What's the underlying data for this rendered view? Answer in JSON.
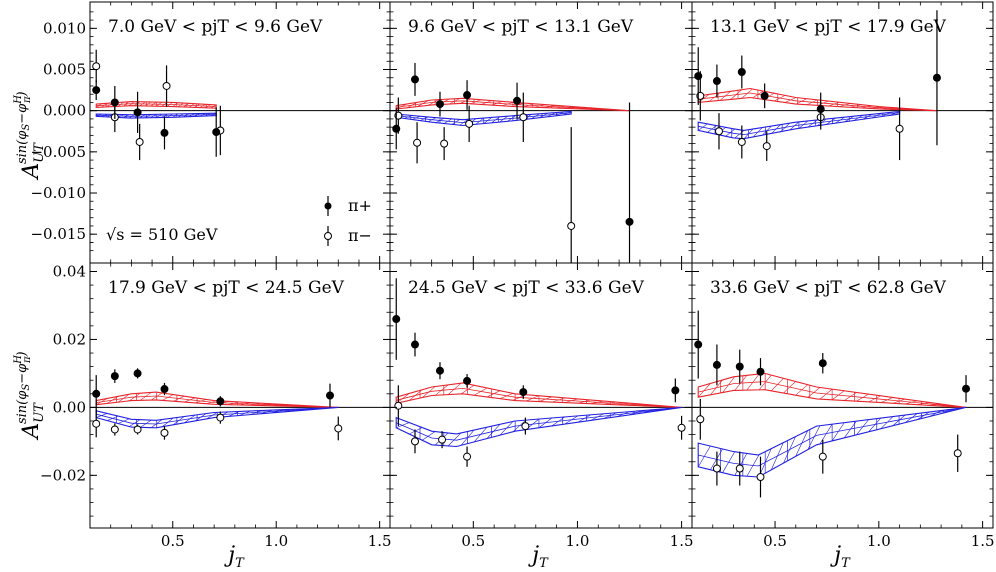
{
  "chart_data": {
    "type": "scatter",
    "figure_xlabel": "j_T",
    "ylabel_rows": [
      "A_UT^sin(φS−φπH)",
      "A_UT^sin(φS−φπH)"
    ],
    "energy_label": "√s = 510 GeV",
    "legend": [
      {
        "name": "π+",
        "marker": "filled-circle"
      },
      {
        "name": "π−",
        "marker": "open-circle"
      }
    ],
    "colors": {
      "pi_plus_band": "#e8242a",
      "pi_minus_band": "#2020e0",
      "points": "#000000",
      "zero_line": "#000000"
    },
    "xlim": [
      0.1,
      1.55
    ],
    "xticks": [
      0.5,
      1.0,
      1.5
    ],
    "xtick_labels": [
      "0.5",
      "1.0",
      "1.5"
    ],
    "rows": [
      {
        "ylim": [
          -0.0185,
          0.0132
        ],
        "yticks": [
          -0.015,
          -0.01,
          -0.005,
          0.0,
          0.005,
          0.01
        ],
        "ytick_labels": [
          "−0.015",
          "−0.010",
          "−0.005",
          "0.000",
          "0.005",
          "0.010"
        ]
      },
      {
        "ylim": [
          -0.0355,
          0.0425
        ],
        "yticks": [
          -0.02,
          0.0,
          0.02,
          0.04
        ],
        "ytick_labels": [
          "−0.02",
          "0.00",
          "0.02",
          "0.04"
        ]
      }
    ],
    "panels": [
      {
        "title": "7.0 GeV < pjT < 9.6 GeV",
        "row": 0,
        "col": 0,
        "pi_plus": [
          [
            0.13,
            0.0025,
            0.0012
          ],
          [
            0.22,
            0.001,
            0.002
          ],
          [
            0.33,
            -0.0002,
            0.0025
          ],
          [
            0.46,
            -0.0027,
            0.002
          ],
          [
            0.71,
            -0.0026,
            0.003
          ]
        ],
        "pi_minus": [
          [
            0.13,
            0.0054,
            0.002
          ],
          [
            0.22,
            -0.0008,
            0.0018
          ],
          [
            0.34,
            -0.0038,
            0.0022
          ],
          [
            0.47,
            0.003,
            0.0025
          ],
          [
            0.73,
            -0.0024,
            0.003
          ]
        ],
        "band_plus": [
          [
            0.13,
            0.0004,
            0.0008
          ],
          [
            0.3,
            0.0006,
            0.0011
          ],
          [
            0.5,
            0.0005,
            0.001
          ],
          [
            0.71,
            0.0003,
            0.0007
          ]
        ],
        "band_minus": [
          [
            0.13,
            -0.0007,
            -0.0004
          ],
          [
            0.3,
            -0.0009,
            -0.0005
          ],
          [
            0.5,
            -0.0008,
            -0.0004
          ],
          [
            0.71,
            -0.0006,
            -0.0003
          ]
        ]
      },
      {
        "title": "9.6 GeV < pjT < 13.1 GeV",
        "row": 0,
        "col": 1,
        "pi_plus": [
          [
            0.13,
            -0.0022,
            0.0025
          ],
          [
            0.22,
            0.0038,
            0.002
          ],
          [
            0.34,
            0.0008,
            0.0015
          ],
          [
            0.47,
            0.0019,
            0.0018
          ],
          [
            0.71,
            0.0012,
            0.0022
          ],
          [
            1.25,
            -0.0135,
            0.0145
          ]
        ],
        "pi_minus": [
          [
            0.14,
            -0.0006,
            0.0022
          ],
          [
            0.23,
            -0.0039,
            0.0025
          ],
          [
            0.36,
            -0.004,
            0.002
          ],
          [
            0.48,
            -0.0016,
            0.0022
          ],
          [
            0.74,
            -0.0008,
            0.003
          ],
          [
            0.97,
            -0.014,
            0.012
          ]
        ],
        "band_plus": [
          [
            0.13,
            0.0002,
            0.0006
          ],
          [
            0.3,
            0.0007,
            0.0013
          ],
          [
            0.45,
            0.0009,
            0.0015
          ],
          [
            0.7,
            0.0005,
            0.001
          ],
          [
            1.25,
            0.0,
            0.0
          ]
        ],
        "band_minus": [
          [
            0.13,
            -0.0008,
            -0.0004
          ],
          [
            0.3,
            -0.0014,
            -0.0008
          ],
          [
            0.45,
            -0.0018,
            -0.0011
          ],
          [
            0.7,
            -0.0012,
            -0.0006
          ],
          [
            0.97,
            -0.0004,
            -0.0001
          ]
        ]
      },
      {
        "title": "13.1 GeV < pjT < 17.9 GeV",
        "row": 0,
        "col": 2,
        "pi_plus": [
          [
            0.13,
            0.0042,
            0.0035
          ],
          [
            0.22,
            0.0036,
            0.002
          ],
          [
            0.34,
            0.0047,
            0.002
          ],
          [
            0.45,
            0.0018,
            0.0015
          ],
          [
            0.72,
            0.0002,
            0.002
          ],
          [
            1.28,
            0.004,
            0.0082
          ]
        ],
        "pi_minus": [
          [
            0.14,
            0.0018,
            0.003
          ],
          [
            0.23,
            -0.0025,
            0.0022
          ],
          [
            0.34,
            -0.0038,
            0.002
          ],
          [
            0.46,
            -0.0043,
            0.0018
          ],
          [
            0.72,
            -0.0008,
            0.0015
          ],
          [
            1.1,
            -0.0022,
            0.0038
          ]
        ],
        "band_plus": [
          [
            0.13,
            0.001,
            0.0018
          ],
          [
            0.3,
            0.0014,
            0.0024
          ],
          [
            0.38,
            0.0016,
            0.0027
          ],
          [
            0.6,
            0.0008,
            0.0016
          ],
          [
            1.0,
            0.0002,
            0.0005
          ],
          [
            1.28,
            0.0,
            0.0
          ]
        ],
        "band_minus": [
          [
            0.13,
            -0.0024,
            -0.0014
          ],
          [
            0.3,
            -0.0033,
            -0.0022
          ],
          [
            0.35,
            -0.0034,
            -0.0024
          ],
          [
            0.6,
            -0.0022,
            -0.0014
          ],
          [
            1.1,
            -0.0004,
            -0.0001
          ]
        ]
      },
      {
        "title": "17.9 GeV < pjT < 24.5 GeV",
        "row": 1,
        "col": 0,
        "pi_plus": [
          [
            0.13,
            0.004,
            0.0055
          ],
          [
            0.22,
            0.0092,
            0.002
          ],
          [
            0.33,
            0.01,
            0.0015
          ],
          [
            0.46,
            0.0054,
            0.0018
          ],
          [
            0.73,
            0.0018,
            0.0015
          ],
          [
            1.26,
            0.0035,
            0.0035
          ]
        ],
        "pi_minus": [
          [
            0.13,
            -0.0048,
            0.004
          ],
          [
            0.22,
            -0.0065,
            0.0018
          ],
          [
            0.33,
            -0.0065,
            0.0015
          ],
          [
            0.46,
            -0.0075,
            0.002
          ],
          [
            0.73,
            -0.003,
            0.0018
          ],
          [
            1.3,
            -0.0062,
            0.0035
          ]
        ],
        "band_plus": [
          [
            0.13,
            0.0008,
            0.002
          ],
          [
            0.3,
            0.002,
            0.004
          ],
          [
            0.42,
            0.0022,
            0.0045
          ],
          [
            0.7,
            0.0009,
            0.002
          ],
          [
            1.3,
            0.0,
            0.0
          ]
        ],
        "band_minus": [
          [
            0.13,
            -0.003,
            -0.001
          ],
          [
            0.3,
            -0.0058,
            -0.0035
          ],
          [
            0.42,
            -0.006,
            -0.0038
          ],
          [
            0.7,
            -0.003,
            -0.0015
          ],
          [
            1.3,
            0.0,
            0.0
          ]
        ]
      },
      {
        "title": "24.5 GeV < pjT < 33.6 GeV",
        "row": 1,
        "col": 1,
        "pi_plus": [
          [
            0.13,
            0.026,
            0.012
          ],
          [
            0.22,
            0.0185,
            0.0035
          ],
          [
            0.34,
            0.0108,
            0.0025
          ],
          [
            0.47,
            0.0078,
            0.002
          ],
          [
            0.74,
            0.0045,
            0.002
          ],
          [
            1.47,
            0.005,
            0.0035
          ]
        ],
        "pi_minus": [
          [
            0.14,
            0.0005,
            0.006
          ],
          [
            0.22,
            -0.01,
            0.0035
          ],
          [
            0.35,
            -0.0095,
            0.0025
          ],
          [
            0.47,
            -0.0145,
            0.003
          ],
          [
            0.75,
            -0.0055,
            0.0025
          ],
          [
            1.5,
            -0.006,
            0.0035
          ]
        ],
        "band_plus": [
          [
            0.13,
            0.0012,
            0.003
          ],
          [
            0.3,
            0.0035,
            0.006
          ],
          [
            0.45,
            0.004,
            0.0072
          ],
          [
            0.7,
            0.002,
            0.004
          ],
          [
            1.5,
            0.0,
            0.0
          ]
        ],
        "band_minus": [
          [
            0.13,
            -0.006,
            -0.003
          ],
          [
            0.3,
            -0.011,
            -0.007
          ],
          [
            0.42,
            -0.0115,
            -0.0078
          ],
          [
            0.7,
            -0.007,
            -0.004
          ],
          [
            1.5,
            0.0,
            0.0
          ]
        ]
      },
      {
        "title": "33.6 GeV < pjT < 62.8 GeV",
        "row": 1,
        "col": 2,
        "pi_plus": [
          [
            0.13,
            0.0185,
            0.01
          ],
          [
            0.22,
            0.0125,
            0.006
          ],
          [
            0.33,
            0.012,
            0.005
          ],
          [
            0.43,
            0.0105,
            0.004
          ],
          [
            0.73,
            0.013,
            0.003
          ],
          [
            1.42,
            0.0055,
            0.004
          ]
        ],
        "pi_minus": [
          [
            0.14,
            -0.0035,
            0.006
          ],
          [
            0.22,
            -0.018,
            0.005
          ],
          [
            0.33,
            -0.018,
            0.005
          ],
          [
            0.43,
            -0.0205,
            0.006
          ],
          [
            0.73,
            -0.0145,
            0.005
          ],
          [
            1.38,
            -0.0135,
            0.0055
          ]
        ],
        "band_plus": [
          [
            0.13,
            0.003,
            0.006
          ],
          [
            0.3,
            0.005,
            0.009
          ],
          [
            0.45,
            0.0052,
            0.01
          ],
          [
            0.7,
            0.0025,
            0.006
          ],
          [
            1.42,
            0.0,
            0.0
          ]
        ],
        "band_minus": [
          [
            0.13,
            -0.0175,
            -0.0105
          ],
          [
            0.3,
            -0.02,
            -0.013
          ],
          [
            0.42,
            -0.0205,
            -0.014
          ],
          [
            0.7,
            -0.011,
            -0.0055
          ],
          [
            1.42,
            0.0,
            0.0
          ]
        ]
      }
    ]
  }
}
